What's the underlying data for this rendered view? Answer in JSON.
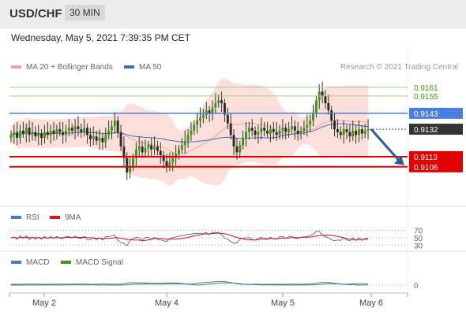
{
  "header": {
    "pair": "USD/CHF",
    "timeframe": "30 MIN"
  },
  "timestamp": "Wednesday, May 5, 2021 7:39:35 PM CET",
  "credit": "Research © 2021 Trading Central",
  "colors": {
    "bollinger": "#f08a80",
    "ma50": "#3f6fb0",
    "rsi": "#4a74d8",
    "rsi_ma": "#e01010",
    "macd": "#4a74d8",
    "macd_signal": "#3a9a10",
    "support": "#e00000",
    "resistance": "#4a7ee0",
    "target": "#3a9a10",
    "arrow": "#2a5b9a"
  },
  "main_legend": {
    "bb": "MA 20 + Bollinger Bands",
    "ma50": "MA 50"
  },
  "rsi_legend": {
    "rsi": "RSI",
    "ma": "9MA"
  },
  "macd_legend": {
    "macd": "MACD",
    "signal": "MACD Signal"
  },
  "chart_data": [
    {
      "type": "candlestick",
      "x_ticks": [
        "May 2",
        "May 4",
        "May 5",
        "May 6"
      ],
      "ylim": [
        0.9095,
        0.9168
      ],
      "levels": [
        {
          "label": "0.9161",
          "value": 0.9161,
          "kind": "target"
        },
        {
          "label": "0.9155",
          "value": 0.9155,
          "kind": "target"
        },
        {
          "label": "0.9143",
          "value": 0.9143,
          "kind": "resistance"
        },
        {
          "label": "0.9132",
          "value": 0.9132,
          "kind": "last_price"
        },
        {
          "label": "0.9113",
          "value": 0.9113,
          "kind": "support"
        },
        {
          "label": "0.9106",
          "value": 0.9106,
          "kind": "support"
        }
      ],
      "close_series": [
        0.9128,
        0.913,
        0.9126,
        0.9131,
        0.9129,
        0.9133,
        0.9128,
        0.913,
        0.9127,
        0.9129,
        0.9126,
        0.913,
        0.9128,
        0.9131,
        0.9129,
        0.9132,
        0.913,
        0.9128,
        0.9131,
        0.9133,
        0.9131,
        0.9134,
        0.9132,
        0.913,
        0.9133,
        0.9128,
        0.9125,
        0.9127,
        0.9124,
        0.9126,
        0.9123,
        0.9128,
        0.9131,
        0.9134,
        0.9138,
        0.913,
        0.912,
        0.9112,
        0.9102,
        0.9106,
        0.9112,
        0.9118,
        0.912,
        0.9116,
        0.9119,
        0.9121,
        0.9118,
        0.912,
        0.9117,
        0.9114,
        0.911,
        0.9106,
        0.9109,
        0.9112,
        0.9115,
        0.9118,
        0.9121,
        0.9124,
        0.9128,
        0.9131,
        0.9135,
        0.9138,
        0.914,
        0.9142,
        0.9145,
        0.9143,
        0.9147,
        0.915,
        0.9152,
        0.915,
        0.9142,
        0.9136,
        0.9128,
        0.912,
        0.9116,
        0.9121,
        0.9126,
        0.913,
        0.9133,
        0.9131,
        0.9128,
        0.913,
        0.9133,
        0.9131,
        0.9129,
        0.9132,
        0.913,
        0.9128,
        0.9131,
        0.9133,
        0.913,
        0.9132,
        0.9134,
        0.9131,
        0.9129,
        0.9131,
        0.9133,
        0.9135,
        0.9138,
        0.9143,
        0.9152,
        0.9158,
        0.9155,
        0.915,
        0.9145,
        0.9138,
        0.9132,
        0.913,
        0.9128,
        0.9132,
        0.913,
        0.9127,
        0.9131,
        0.9128,
        0.9132,
        0.9129,
        0.9131,
        0.9132
      ],
      "forecast": {
        "from": 0.9132,
        "to": 0.9106
      }
    },
    {
      "type": "line",
      "name": "RSI",
      "y_ticks": [
        70,
        50,
        30
      ],
      "ylim": [
        20,
        80
      ]
    },
    {
      "type": "line",
      "name": "MACD",
      "y_ticks": [
        0
      ]
    }
  ]
}
